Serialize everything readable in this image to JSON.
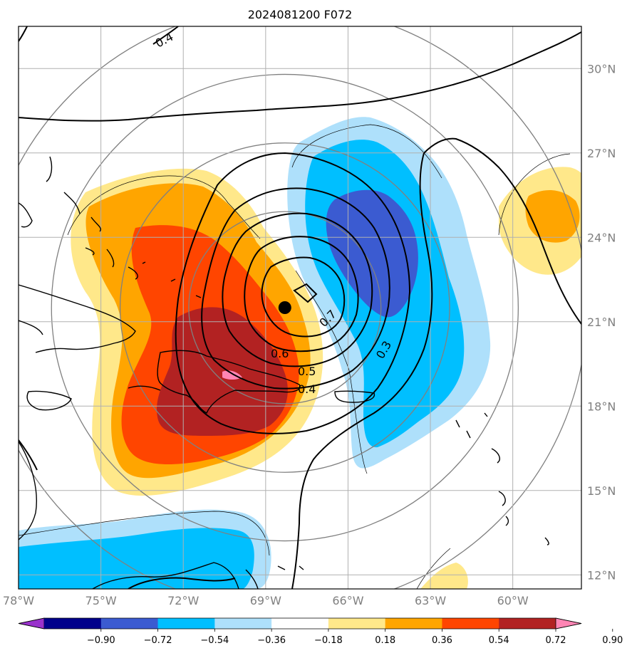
{
  "title": "2024081200 F072",
  "map": {
    "lon_range": [
      -78.0,
      -57.5
    ],
    "lat_range": [
      11.5,
      31.5
    ],
    "lon_ticks": [
      {
        "value": -78,
        "label": "78°W"
      },
      {
        "value": -75,
        "label": "75°W"
      },
      {
        "value": -72,
        "label": "72°W"
      },
      {
        "value": -69,
        "label": "69°W"
      },
      {
        "value": -66,
        "label": "66°W"
      },
      {
        "value": -63,
        "label": "63°W"
      },
      {
        "value": -60,
        "label": "60°W"
      }
    ],
    "lat_ticks": [
      {
        "value": 12,
        "label": "12°N"
      },
      {
        "value": 15,
        "label": "15°N"
      },
      {
        "value": 18,
        "label": "18°N"
      },
      {
        "value": 21,
        "label": "21°N"
      },
      {
        "value": 24,
        "label": "24°N"
      },
      {
        "value": 27,
        "label": "27°N"
      },
      {
        "value": 30,
        "label": "30°N"
      }
    ],
    "grid": true,
    "storm_center": {
      "lon": -68.3,
      "lat": 21.5
    },
    "range_rings_center": {
      "lon": -68.3,
      "lat": 21.5
    },
    "range_rings_deg": [
      3.5,
      6.0,
      8.5,
      11.0
    ]
  },
  "contour_labels": [
    "0.4",
    "0.7",
    "0.6",
    "0.5",
    "0.4",
    "0.3"
  ],
  "colorbar": {
    "levels": [
      "−0.90",
      "−0.72",
      "−0.54",
      "−0.36",
      "−0.18",
      "0.18",
      "0.36",
      "0.54",
      "0.72",
      "0.90"
    ],
    "colors": [
      "#9932cc",
      "#00008b",
      "#3b5bd1",
      "#00bfff",
      "#aee0fb",
      "#ffffff",
      "#ffe88a",
      "#ffa500",
      "#ff4500",
      "#b22222",
      "#ff85b4"
    ]
  }
}
